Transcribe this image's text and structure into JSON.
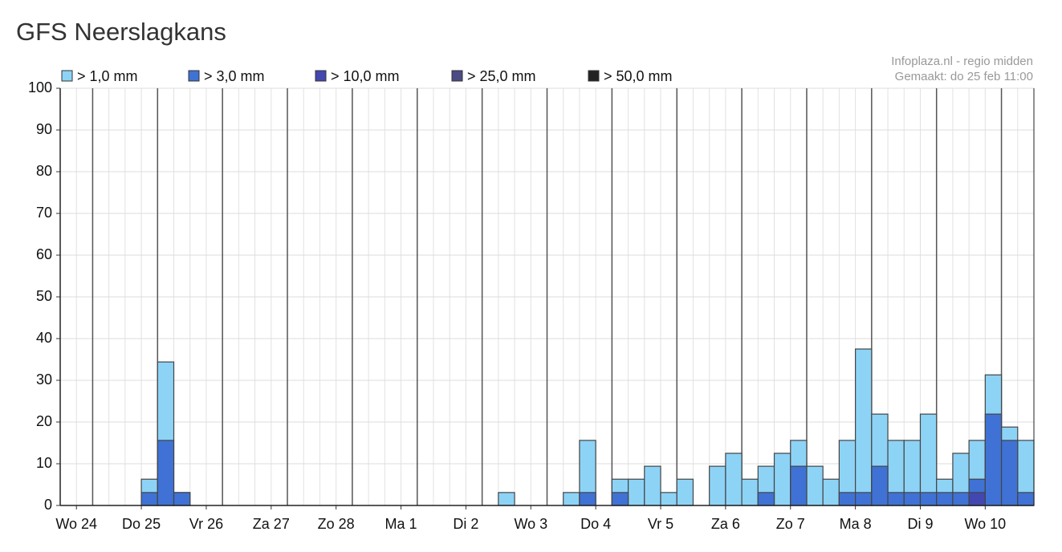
{
  "chart_data": {
    "type": "bar",
    "title": "GFS Neerslagkans",
    "source": "Infoplaza.nl - regio midden",
    "made": "Gemaakt: do 25 feb 11:00",
    "day_labels": [
      "Wo 24",
      "Do 25",
      "Vr 26",
      "Za 27",
      "Zo 28",
      "Ma 1",
      "Di 2",
      "Wo 3",
      "Do 4",
      "Vr 5",
      "Za 6",
      "Zo 7",
      "Ma 8",
      "Di 9",
      "Wo 10"
    ],
    "ylim": [
      0,
      100
    ],
    "yticks": [
      0,
      10,
      20,
      30,
      40,
      50,
      60,
      70,
      80,
      90,
      100
    ],
    "grid": true,
    "series": [
      {
        "name": "> 1,0 mm",
        "color": "#8dd3f6",
        "values": [
          0,
          0,
          0,
          0,
          0,
          6.3,
          34.4,
          3.1,
          0,
          0,
          0,
          0,
          0,
          0,
          0,
          0,
          0,
          0,
          0,
          0,
          0,
          0,
          0,
          0,
          0,
          0,
          0,
          3.1,
          0,
          0,
          0,
          3.1,
          15.6,
          0,
          6.3,
          6.3,
          9.4,
          3.1,
          6.3,
          0,
          9.4,
          12.5,
          6.3,
          9.4,
          12.5,
          15.6,
          9.4,
          6.3,
          15.6,
          37.5,
          21.9,
          15.6,
          15.6,
          21.9,
          6.3,
          12.5,
          15.6,
          31.3,
          18.8,
          15.6
        ]
      },
      {
        "name": "> 3,0 mm",
        "color": "#3f72d4",
        "values": [
          0,
          0,
          0,
          0,
          0,
          3.1,
          15.6,
          3.1,
          0,
          0,
          0,
          0,
          0,
          0,
          0,
          0,
          0,
          0,
          0,
          0,
          0,
          0,
          0,
          0,
          0,
          0,
          0,
          0,
          0,
          0,
          0,
          0,
          3.1,
          0,
          3.1,
          0,
          0,
          0,
          0,
          0,
          0,
          0,
          0,
          3.1,
          0,
          9.4,
          0,
          0,
          3.1,
          3.1,
          9.4,
          3.1,
          3.1,
          3.1,
          3.1,
          3.1,
          6.3,
          21.9,
          15.6,
          3.1
        ]
      },
      {
        "name": "> 10,0 mm",
        "color": "#4347b0",
        "values": [
          0,
          0,
          0,
          0,
          0,
          0,
          0,
          0,
          0,
          0,
          0,
          0,
          0,
          0,
          0,
          0,
          0,
          0,
          0,
          0,
          0,
          0,
          0,
          0,
          0,
          0,
          0,
          0,
          0,
          0,
          0,
          0,
          0,
          0,
          0,
          0,
          0,
          0,
          0,
          0,
          0,
          0,
          0,
          0,
          0,
          0,
          0,
          0,
          0,
          0,
          0,
          0,
          0,
          0,
          0,
          0,
          3.1,
          0,
          0,
          0
        ]
      },
      {
        "name": "> 25,0 mm",
        "color": "#4b4b85",
        "values": [
          0,
          0,
          0,
          0,
          0,
          0,
          0,
          0,
          0,
          0,
          0,
          0,
          0,
          0,
          0,
          0,
          0,
          0,
          0,
          0,
          0,
          0,
          0,
          0,
          0,
          0,
          0,
          0,
          0,
          0,
          0,
          0,
          0,
          0,
          0,
          0,
          0,
          0,
          0,
          0,
          0,
          0,
          0,
          0,
          0,
          0,
          0,
          0,
          0,
          0,
          0,
          0,
          0,
          0,
          0,
          0,
          0,
          0,
          0,
          0
        ]
      },
      {
        "name": "> 50,0 mm",
        "color": "#222222",
        "values": [
          0,
          0,
          0,
          0,
          0,
          0,
          0,
          0,
          0,
          0,
          0,
          0,
          0,
          0,
          0,
          0,
          0,
          0,
          0,
          0,
          0,
          0,
          0,
          0,
          0,
          0,
          0,
          0,
          0,
          0,
          0,
          0,
          0,
          0,
          0,
          0,
          0,
          0,
          0,
          0,
          0,
          0,
          0,
          0,
          0,
          0,
          0,
          0,
          0,
          0,
          0,
          0,
          0,
          0,
          0,
          0,
          0,
          0,
          0,
          0
        ]
      }
    ]
  }
}
